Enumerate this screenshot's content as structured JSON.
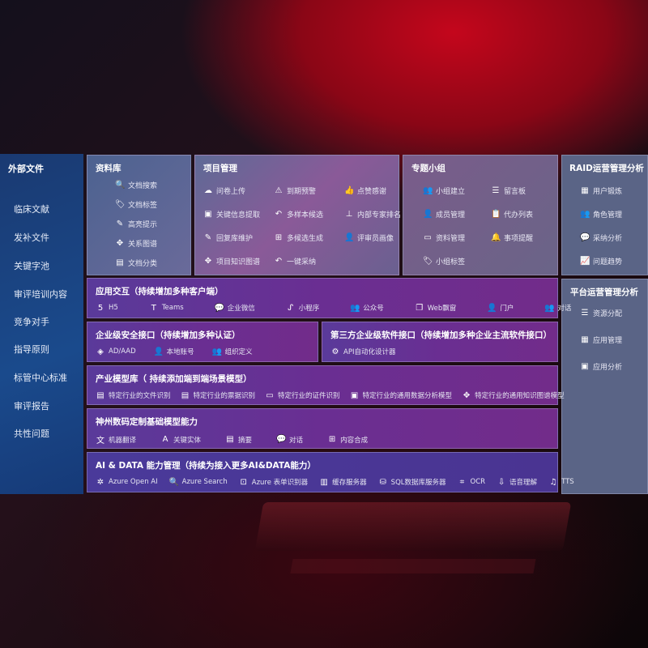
{
  "sidebar": {
    "title": "外部文件",
    "items": [
      "临床文献",
      "发补文件",
      "关键字池",
      "审评培训内容",
      "竞争对手",
      "指导原则",
      "标管中心标准",
      "审评报告",
      "共性问题"
    ]
  },
  "library": {
    "title": "资料库",
    "items": [
      {
        "label": "文档搜索",
        "icon": "doc-search-icon",
        "g": "🔍"
      },
      {
        "label": "文档标签",
        "icon": "tag-icon",
        "g": "🏷"
      },
      {
        "label": "高亮提示",
        "icon": "pen-icon",
        "g": "✎"
      },
      {
        "label": "关系图谱",
        "icon": "graph-icon",
        "g": "✥"
      },
      {
        "label": "文档分类",
        "icon": "doc-category-icon",
        "g": "▤"
      }
    ]
  },
  "project": {
    "title": "项目管理",
    "items": [
      {
        "label": "问卷上传",
        "icon": "cloud-upload-icon",
        "g": "☁"
      },
      {
        "label": "到期预警",
        "icon": "alarm-icon",
        "g": "⚠"
      },
      {
        "label": "点赞感谢",
        "icon": "thumbs-up-icon",
        "g": "👍"
      },
      {
        "label": "关键信息提取",
        "icon": "window-icon",
        "g": "▣"
      },
      {
        "label": "多样本候选",
        "icon": "reply-icon",
        "g": "↶"
      },
      {
        "label": "内部专家排名",
        "icon": "ranking-icon",
        "g": "⊥"
      },
      {
        "label": "回复库维护",
        "icon": "edit-icon",
        "g": "✎"
      },
      {
        "label": "多候选生成",
        "icon": "puzzle-icon",
        "g": "⊞"
      },
      {
        "label": "评审员画像",
        "icon": "user-icon",
        "g": "👤"
      },
      {
        "label": "项目知识图谱",
        "icon": "graph-icon",
        "g": "✥"
      },
      {
        "label": "一键采纳",
        "icon": "reply-icon",
        "g": "↶"
      }
    ]
  },
  "group": {
    "title": "专题小组",
    "items": [
      {
        "label": "小组建立",
        "icon": "users-icon",
        "g": "👥"
      },
      {
        "label": "留言板",
        "icon": "bbs-icon",
        "g": "☰"
      },
      {
        "label": "成员管理",
        "icon": "user-add-icon",
        "g": "👤"
      },
      {
        "label": "代办列表",
        "icon": "clipboard-icon",
        "g": "📋"
      },
      {
        "label": "资料管理",
        "icon": "folder-icon",
        "g": "▭"
      },
      {
        "label": "事项提醒",
        "icon": "bell-icon",
        "g": "🔔"
      },
      {
        "label": "小组标签",
        "icon": "tag-icon",
        "g": "🏷"
      }
    ]
  },
  "raid": {
    "title": "RAID运营管理分析",
    "items": [
      {
        "label": "用户锻炼",
        "icon": "id-card-icon",
        "g": "▦"
      },
      {
        "label": "角色管理",
        "icon": "users-icon",
        "g": "👥"
      },
      {
        "label": "采纳分析",
        "icon": "qa-icon",
        "g": "💬"
      },
      {
        "label": "问题趋势",
        "icon": "trend-icon",
        "g": "📈"
      }
    ]
  },
  "platform": {
    "title": "平台运营管理分析",
    "items": [
      {
        "label": "资源分配",
        "icon": "checklist-icon",
        "g": "☰"
      },
      {
        "label": "应用管理",
        "icon": "apps-icon",
        "g": "▦"
      },
      {
        "label": "应用分析",
        "icon": "analysis-icon",
        "g": "▣"
      }
    ]
  },
  "app": {
    "title": "应用交互（持续增加多种客户端）",
    "items": [
      {
        "label": "H5",
        "icon": "html5-icon",
        "g": "5"
      },
      {
        "label": "Teams",
        "icon": "teams-icon",
        "g": "T"
      },
      {
        "label": "企业微信",
        "icon": "wechat-work-icon",
        "g": "💬"
      },
      {
        "label": "小程序",
        "icon": "mini-program-icon",
        "g": "ᔑ"
      },
      {
        "label": "公众号",
        "icon": "official-account-icon",
        "g": "👥"
      },
      {
        "label": "Web飘窗",
        "icon": "window-icon",
        "g": "❐"
      },
      {
        "label": "门户",
        "icon": "portal-icon",
        "g": "👤"
      },
      {
        "label": "对话",
        "icon": "chat-icon",
        "g": "👥"
      }
    ]
  },
  "security": {
    "title": "企业级安全接口（持续增加多种认证）",
    "items": [
      {
        "label": "AD/AAD",
        "icon": "ad-icon",
        "g": "◈"
      },
      {
        "label": "本地账号",
        "icon": "local-account-icon",
        "g": "👤"
      },
      {
        "label": "组织定义",
        "icon": "org-icon",
        "g": "👥"
      }
    ]
  },
  "thirdparty": {
    "title": "第三方企业级软件接口（持续增加多种企业主流软件接口）",
    "items": [
      {
        "label": "API自动化设计器",
        "icon": "gear-icon",
        "g": "⚙"
      }
    ]
  },
  "industry": {
    "title": "产业模型库（ 持续添加端到端场景模型）",
    "items": [
      {
        "label": "特定行业的文件识别",
        "icon": "file-icon",
        "g": "▤"
      },
      {
        "label": "特定行业的票据识别",
        "icon": "receipt-icon",
        "g": "▤"
      },
      {
        "label": "特定行业的证件识别",
        "icon": "id-card-icon",
        "g": "▭"
      },
      {
        "label": "特定行业的通用数据分析模型",
        "icon": "data-analysis-icon",
        "g": "▣"
      },
      {
        "label": "特定行业的通用知识图谱模型",
        "icon": "graph-icon",
        "g": "✥"
      }
    ]
  },
  "foundation": {
    "title": "神州数码定制基础模型能力",
    "items": [
      {
        "label": "机器翻译",
        "icon": "translate-icon",
        "g": "文"
      },
      {
        "label": "关键实体",
        "icon": "entity-icon",
        "g": "A"
      },
      {
        "label": "摘要",
        "icon": "summary-icon",
        "g": "▤"
      },
      {
        "label": "对话",
        "icon": "chat-icon",
        "g": "💬"
      },
      {
        "label": "内容合成",
        "icon": "puzzle-icon",
        "g": "⊞"
      }
    ]
  },
  "aidata": {
    "title": "AI & DATA 能力管理（持续为接入更多AI&DATA能力）",
    "items": [
      {
        "label": "Azure Open AI",
        "icon": "openai-icon",
        "g": "✲"
      },
      {
        "label": "Azure Search",
        "icon": "search-icon",
        "g": "🔍"
      },
      {
        "label": "Azure 表单识别器",
        "icon": "form-icon",
        "g": "⊡"
      },
      {
        "label": "缓存服务器",
        "icon": "cache-server-icon",
        "g": "▥"
      },
      {
        "label": "SQL数据库服务器",
        "icon": "database-icon",
        "g": "⛁"
      },
      {
        "label": "OCR",
        "icon": "ocr-icon",
        "g": "⌗"
      },
      {
        "label": "语音理解",
        "icon": "speech-icon",
        "g": "⇩"
      },
      {
        "label": "TTS",
        "icon": "tts-icon",
        "g": "♫"
      }
    ]
  }
}
